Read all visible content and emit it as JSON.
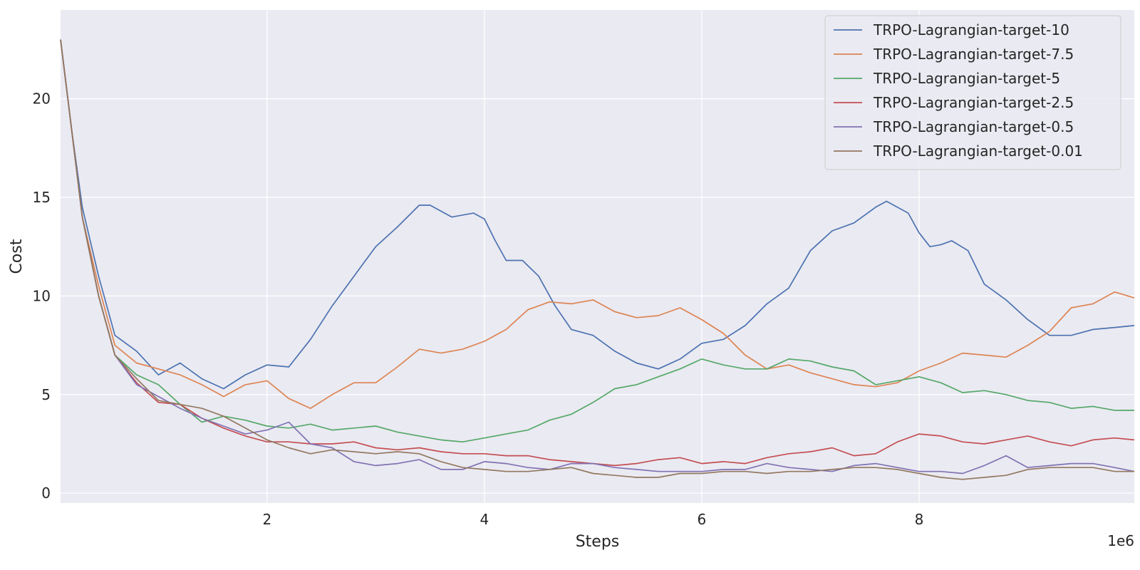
{
  "chart_data": {
    "type": "line",
    "xlabel": "Steps",
    "ylabel": "Cost",
    "x_scale_label": "1e6",
    "xlim": [
      0.1,
      9.98
    ],
    "ylim": [
      -0.5,
      24.5
    ],
    "xticks": [
      2,
      4,
      6,
      8
    ],
    "xtick_labels": [
      "2",
      "4",
      "6",
      "8"
    ],
    "yticks": [
      0,
      5,
      10,
      15,
      20
    ],
    "ytick_labels": [
      "0",
      "5",
      "10",
      "15",
      "20"
    ],
    "grid": true,
    "background": "#EAEAF2",
    "legend_position": "top-right",
    "series": [
      {
        "name": "TRPO-Lagrangian-target-10",
        "color": "#4C72B0",
        "x": [
          0.1,
          0.2,
          0.3,
          0.45,
          0.6,
          0.8,
          1.0,
          1.2,
          1.4,
          1.6,
          1.8,
          2.0,
          2.2,
          2.4,
          2.6,
          2.8,
          3.0,
          3.2,
          3.4,
          3.5,
          3.7,
          3.9,
          4.0,
          4.1,
          4.2,
          4.35,
          4.5,
          4.65,
          4.8,
          5.0,
          5.2,
          5.4,
          5.6,
          5.8,
          6.0,
          6.2,
          6.4,
          6.6,
          6.8,
          7.0,
          7.2,
          7.4,
          7.6,
          7.7,
          7.9,
          8.0,
          8.1,
          8.2,
          8.3,
          8.45,
          8.6,
          8.8,
          9.0,
          9.2,
          9.4,
          9.6,
          9.8,
          9.98
        ],
        "y": [
          23.0,
          18.5,
          14.5,
          11.0,
          8.0,
          7.2,
          6.0,
          6.6,
          5.8,
          5.3,
          6.0,
          6.5,
          6.4,
          7.8,
          9.5,
          11.0,
          12.5,
          13.5,
          14.6,
          14.6,
          14.0,
          14.2,
          13.9,
          12.8,
          11.8,
          11.8,
          11.0,
          9.5,
          8.3,
          8.0,
          7.2,
          6.6,
          6.3,
          6.8,
          7.6,
          7.8,
          8.5,
          9.6,
          10.4,
          12.3,
          13.3,
          13.7,
          14.5,
          14.8,
          14.2,
          13.2,
          12.5,
          12.6,
          12.8,
          12.3,
          10.6,
          9.8,
          8.8,
          8.0,
          8.0,
          8.3,
          8.4,
          8.5
        ]
      },
      {
        "name": "TRPO-Lagrangian-target-7.5",
        "color": "#DD8452",
        "x": [
          0.1,
          0.2,
          0.3,
          0.45,
          0.6,
          0.8,
          1.0,
          1.2,
          1.4,
          1.6,
          1.8,
          2.0,
          2.2,
          2.4,
          2.6,
          2.8,
          3.0,
          3.2,
          3.4,
          3.6,
          3.8,
          4.0,
          4.2,
          4.4,
          4.6,
          4.8,
          5.0,
          5.2,
          5.4,
          5.6,
          5.8,
          6.0,
          6.2,
          6.4,
          6.6,
          6.8,
          7.0,
          7.2,
          7.4,
          7.6,
          7.8,
          8.0,
          8.2,
          8.4,
          8.6,
          8.8,
          9.0,
          9.2,
          9.4,
          9.6,
          9.8,
          9.98
        ],
        "y": [
          23.0,
          18.5,
          14.0,
          10.5,
          7.5,
          6.6,
          6.3,
          6.0,
          5.5,
          4.9,
          5.5,
          5.7,
          4.8,
          4.3,
          5.0,
          5.6,
          5.6,
          6.4,
          7.3,
          7.1,
          7.3,
          7.7,
          8.3,
          9.3,
          9.7,
          9.6,
          9.8,
          9.2,
          8.9,
          9.0,
          9.4,
          8.8,
          8.1,
          7.0,
          6.3,
          6.5,
          6.1,
          5.8,
          5.5,
          5.4,
          5.6,
          6.2,
          6.6,
          7.1,
          7.0,
          6.9,
          7.5,
          8.2,
          9.4,
          9.6,
          10.2,
          9.9
        ]
      },
      {
        "name": "TRPO-Lagrangian-target-5",
        "color": "#55A868",
        "x": [
          0.1,
          0.2,
          0.3,
          0.45,
          0.6,
          0.8,
          1.0,
          1.2,
          1.4,
          1.6,
          1.8,
          2.0,
          2.2,
          2.4,
          2.6,
          2.8,
          3.0,
          3.2,
          3.4,
          3.6,
          3.8,
          4.0,
          4.2,
          4.4,
          4.6,
          4.8,
          5.0,
          5.2,
          5.4,
          5.6,
          5.8,
          6.0,
          6.2,
          6.4,
          6.6,
          6.8,
          7.0,
          7.2,
          7.4,
          7.6,
          7.8,
          8.0,
          8.2,
          8.4,
          8.6,
          8.8,
          9.0,
          9.2,
          9.4,
          9.6,
          9.8,
          9.98
        ],
        "y": [
          23.0,
          18.5,
          14.0,
          10.0,
          7.0,
          6.0,
          5.5,
          4.5,
          3.6,
          3.9,
          3.7,
          3.4,
          3.3,
          3.5,
          3.2,
          3.3,
          3.4,
          3.1,
          2.9,
          2.7,
          2.6,
          2.8,
          3.0,
          3.2,
          3.7,
          4.0,
          4.6,
          5.3,
          5.5,
          5.9,
          6.3,
          6.8,
          6.5,
          6.3,
          6.3,
          6.8,
          6.7,
          6.4,
          6.2,
          5.5,
          5.7,
          5.9,
          5.6,
          5.1,
          5.2,
          5.0,
          4.7,
          4.6,
          4.3,
          4.4,
          4.2,
          4.2
        ]
      },
      {
        "name": "TRPO-Lagrangian-target-2.5",
        "color": "#C44E52",
        "x": [
          0.1,
          0.2,
          0.3,
          0.45,
          0.6,
          0.8,
          1.0,
          1.2,
          1.4,
          1.6,
          1.8,
          2.0,
          2.2,
          2.4,
          2.6,
          2.8,
          3.0,
          3.2,
          3.4,
          3.6,
          3.8,
          4.0,
          4.2,
          4.4,
          4.6,
          4.8,
          5.0,
          5.2,
          5.4,
          5.6,
          5.8,
          6.0,
          6.2,
          6.4,
          6.6,
          6.8,
          7.0,
          7.2,
          7.4,
          7.6,
          7.8,
          8.0,
          8.2,
          8.4,
          8.6,
          8.8,
          9.0,
          9.2,
          9.4,
          9.6,
          9.8,
          9.98
        ],
        "y": [
          23.0,
          18.5,
          14.0,
          10.0,
          7.0,
          5.6,
          4.6,
          4.5,
          3.8,
          3.3,
          2.9,
          2.6,
          2.6,
          2.5,
          2.5,
          2.6,
          2.3,
          2.2,
          2.3,
          2.1,
          2.0,
          2.0,
          1.9,
          1.9,
          1.7,
          1.6,
          1.5,
          1.4,
          1.5,
          1.7,
          1.8,
          1.5,
          1.6,
          1.5,
          1.8,
          2.0,
          2.1,
          2.3,
          1.9,
          2.0,
          2.6,
          3.0,
          2.9,
          2.6,
          2.5,
          2.7,
          2.9,
          2.6,
          2.4,
          2.7,
          2.8,
          2.7
        ]
      },
      {
        "name": "TRPO-Lagrangian-target-0.5",
        "color": "#8172B3",
        "x": [
          0.1,
          0.2,
          0.3,
          0.45,
          0.6,
          0.8,
          1.0,
          1.2,
          1.4,
          1.6,
          1.8,
          2.0,
          2.2,
          2.4,
          2.6,
          2.8,
          3.0,
          3.2,
          3.4,
          3.6,
          3.8,
          4.0,
          4.2,
          4.4,
          4.6,
          4.8,
          5.0,
          5.2,
          5.4,
          5.6,
          5.8,
          6.0,
          6.2,
          6.4,
          6.6,
          6.8,
          7.0,
          7.2,
          7.4,
          7.6,
          7.8,
          8.0,
          8.2,
          8.4,
          8.6,
          8.8,
          9.0,
          9.2,
          9.4,
          9.6,
          9.8,
          9.98
        ],
        "y": [
          23.0,
          18.5,
          14.0,
          10.0,
          7.0,
          5.5,
          4.9,
          4.3,
          3.8,
          3.4,
          3.0,
          3.2,
          3.6,
          2.5,
          2.3,
          1.6,
          1.4,
          1.5,
          1.7,
          1.2,
          1.2,
          1.6,
          1.5,
          1.3,
          1.2,
          1.5,
          1.5,
          1.3,
          1.2,
          1.1,
          1.1,
          1.1,
          1.2,
          1.2,
          1.5,
          1.3,
          1.2,
          1.1,
          1.4,
          1.5,
          1.3,
          1.1,
          1.1,
          1.0,
          1.4,
          1.9,
          1.3,
          1.4,
          1.5,
          1.5,
          1.3,
          1.1
        ]
      },
      {
        "name": "TRPO-Lagrangian-target-0.01",
        "color": "#937860",
        "x": [
          0.1,
          0.2,
          0.3,
          0.45,
          0.6,
          0.8,
          1.0,
          1.2,
          1.4,
          1.6,
          1.8,
          2.0,
          2.2,
          2.4,
          2.6,
          2.8,
          3.0,
          3.2,
          3.4,
          3.6,
          3.8,
          4.0,
          4.2,
          4.4,
          4.6,
          4.8,
          5.0,
          5.2,
          5.4,
          5.6,
          5.8,
          6.0,
          6.2,
          6.4,
          6.6,
          6.8,
          7.0,
          7.2,
          7.4,
          7.6,
          7.8,
          8.0,
          8.2,
          8.4,
          8.6,
          8.8,
          9.0,
          9.2,
          9.4,
          9.6,
          9.8,
          9.98
        ],
        "y": [
          23.0,
          18.5,
          14.0,
          10.0,
          7.0,
          5.8,
          4.7,
          4.5,
          4.3,
          3.9,
          3.3,
          2.7,
          2.3,
          2.0,
          2.2,
          2.1,
          2.0,
          2.1,
          2.0,
          1.6,
          1.3,
          1.2,
          1.1,
          1.1,
          1.2,
          1.3,
          1.0,
          0.9,
          0.8,
          0.8,
          1.0,
          1.0,
          1.1,
          1.1,
          1.0,
          1.1,
          1.1,
          1.2,
          1.3,
          1.3,
          1.2,
          1.0,
          0.8,
          0.7,
          0.8,
          0.9,
          1.2,
          1.3,
          1.3,
          1.3,
          1.1,
          1.1
        ]
      }
    ]
  }
}
